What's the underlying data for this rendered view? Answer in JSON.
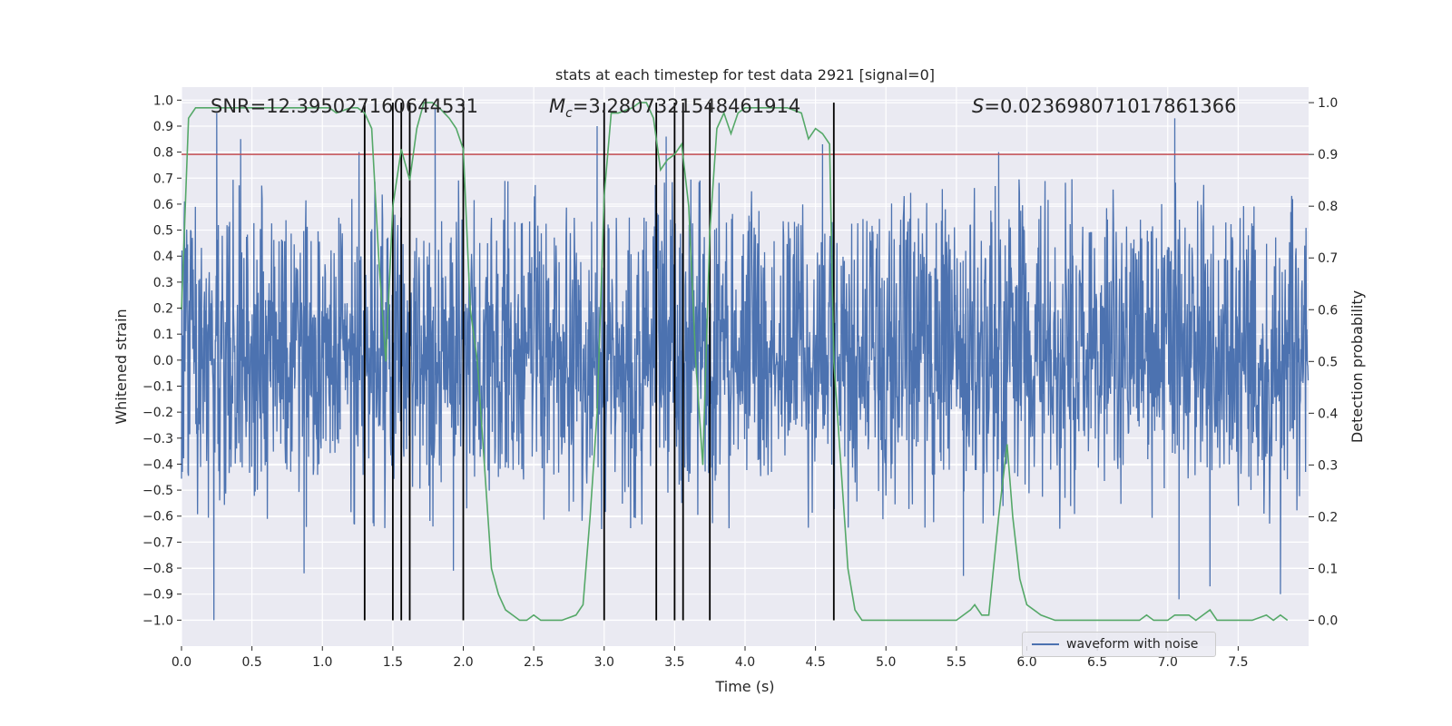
{
  "chart_data": {
    "type": "line",
    "title": "stats at each timestep for test data 2921 [signal=0]",
    "xlabel": "Time (s)",
    "ylabel_left": "Whitened strain",
    "ylabel_right": "Detection probability",
    "xlim": [
      0.0,
      8.0
    ],
    "ylim_left": [
      -1.1,
      1.05
    ],
    "ylim_right": [
      -0.05,
      1.03
    ],
    "x_ticks": [
      0.0,
      0.5,
      1.0,
      1.5,
      2.0,
      2.5,
      3.0,
      3.5,
      4.0,
      4.5,
      5.0,
      5.5,
      6.0,
      6.5,
      7.0,
      7.5
    ],
    "x_tick_labels": [
      "0.0",
      "0.5",
      "1.0",
      "1.5",
      "2.0",
      "2.5",
      "3.0",
      "3.5",
      "4.0",
      "4.5",
      "5.0",
      "5.5",
      "6.0",
      "6.5",
      "7.0",
      "7.5"
    ],
    "y_left_ticks": [
      1.0,
      0.9,
      0.8,
      0.7,
      0.6,
      0.5,
      0.4,
      0.3,
      0.2,
      0.1,
      0.0,
      -0.1,
      -0.2,
      -0.3,
      -0.4,
      -0.5,
      -0.6,
      -0.7,
      -0.8,
      -0.9,
      -1.0
    ],
    "y_left_tick_labels": [
      "1.0",
      "0.9",
      "0.8",
      "0.7",
      "0.6",
      "0.5",
      "0.4",
      "0.3",
      "0.2",
      "0.1",
      "0.0",
      "−0.1",
      "−0.2",
      "−0.3",
      "−0.4",
      "−0.5",
      "−0.6",
      "−0.7",
      "−0.8",
      "−0.9",
      "−1.0"
    ],
    "y_right_ticks": [
      1.0,
      0.9,
      0.8,
      0.7,
      0.6,
      0.5,
      0.4,
      0.3,
      0.2,
      0.1,
      0.0
    ],
    "y_right_tick_labels": [
      "1.0",
      "0.9",
      "0.8",
      "0.7",
      "0.6",
      "0.5",
      "0.4",
      "0.3",
      "0.2",
      "0.1",
      "0.0"
    ],
    "annotations": {
      "snr": "SNR=12.395027160644531",
      "mc_symbol": "M",
      "mc_sub": "c",
      "mc_value": "=3.2807321548461914",
      "s_symbol": "S",
      "s_value": "=0.023698071017861366"
    },
    "threshold": {
      "value": 0.9,
      "axis": "right",
      "color": "#c44e52"
    },
    "vertical_markers_x": [
      1.3,
      1.5,
      1.56,
      1.62,
      2.0,
      3.0,
      3.37,
      3.5,
      3.56,
      3.75,
      4.63
    ],
    "waveform": {
      "name": "waveform with noise",
      "color": "#4c72b0",
      "duration_s": 8.0,
      "typical_envelope": [
        -0.45,
        0.55
      ],
      "extreme_points": [
        {
          "t": 0.23,
          "v": -1.0
        },
        {
          "t": 0.25,
          "v": 0.95
        },
        {
          "t": 0.42,
          "v": 0.85
        },
        {
          "t": 0.87,
          "v": -0.82
        },
        {
          "t": 1.26,
          "v": 0.8
        },
        {
          "t": 1.8,
          "v": 0.97
        },
        {
          "t": 1.93,
          "v": -0.81
        },
        {
          "t": 2.95,
          "v": 0.9
        },
        {
          "t": 3.44,
          "v": 0.86
        },
        {
          "t": 3.5,
          "v": -0.82
        },
        {
          "t": 4.55,
          "v": 0.83
        },
        {
          "t": 5.55,
          "v": -0.83
        },
        {
          "t": 5.8,
          "v": 0.8
        },
        {
          "t": 7.05,
          "v": 0.93
        },
        {
          "t": 7.08,
          "v": -0.92
        },
        {
          "t": 7.3,
          "v": -0.87
        },
        {
          "t": 7.8,
          "v": -0.9
        }
      ]
    },
    "detection_probability": {
      "color": "#55a868",
      "x": [
        0.0,
        0.05,
        0.1,
        0.3,
        0.5,
        0.7,
        0.9,
        1.0,
        1.05,
        1.1,
        1.2,
        1.25,
        1.3,
        1.35,
        1.4,
        1.45,
        1.5,
        1.56,
        1.62,
        1.67,
        1.72,
        1.78,
        1.83,
        1.9,
        1.95,
        2.0,
        2.05,
        2.1,
        2.15,
        2.2,
        2.25,
        2.3,
        2.35,
        2.4,
        2.45,
        2.5,
        2.55,
        2.6,
        2.7,
        2.8,
        2.85,
        2.9,
        2.95,
        3.0,
        3.05,
        3.1,
        3.2,
        3.25,
        3.3,
        3.35,
        3.4,
        3.45,
        3.5,
        3.55,
        3.6,
        3.65,
        3.7,
        3.75,
        3.8,
        3.85,
        3.9,
        3.95,
        4.0,
        4.1,
        4.2,
        4.3,
        4.4,
        4.45,
        4.5,
        4.55,
        4.6,
        4.63,
        4.68,
        4.73,
        4.78,
        4.83,
        4.88,
        4.95,
        5.05,
        5.2,
        5.4,
        5.5,
        5.55,
        5.6,
        5.63,
        5.68,
        5.73,
        5.8,
        5.86,
        5.9,
        5.95,
        6.0,
        6.1,
        6.2,
        6.4,
        6.6,
        6.75,
        6.8,
        6.85,
        6.9,
        7.0,
        7.05,
        7.15,
        7.2,
        7.25,
        7.3,
        7.35,
        7.45,
        7.6,
        7.7,
        7.75,
        7.8,
        7.85
      ],
      "y": [
        0.6,
        0.97,
        0.99,
        0.99,
        0.99,
        0.99,
        0.99,
        0.99,
        0.99,
        0.98,
        0.99,
        0.99,
        0.98,
        0.95,
        0.7,
        0.5,
        0.8,
        0.91,
        0.85,
        0.95,
        1.0,
        1.0,
        0.99,
        0.97,
        0.95,
        0.91,
        0.6,
        0.5,
        0.3,
        0.1,
        0.05,
        0.02,
        0.01,
        0.0,
        0.0,
        0.01,
        0.0,
        0.0,
        0.0,
        0.01,
        0.03,
        0.2,
        0.4,
        0.82,
        0.98,
        0.98,
        0.99,
        1.0,
        1.0,
        0.97,
        0.87,
        0.89,
        0.9,
        0.92,
        0.8,
        0.5,
        0.3,
        0.75,
        0.95,
        0.98,
        0.94,
        0.98,
        0.99,
        0.99,
        0.99,
        0.99,
        0.98,
        0.93,
        0.95,
        0.94,
        0.92,
        0.5,
        0.3,
        0.1,
        0.02,
        0.0,
        0.0,
        0.0,
        0.0,
        0.0,
        0.0,
        0.0,
        0.01,
        0.02,
        0.03,
        0.01,
        0.01,
        0.2,
        0.34,
        0.2,
        0.08,
        0.03,
        0.01,
        0.0,
        0.0,
        0.0,
        0.0,
        0.0,
        0.01,
        0.0,
        0.0,
        0.01,
        0.01,
        0.0,
        0.01,
        0.02,
        0.0,
        0.0,
        0.0,
        0.01,
        0.0,
        0.01,
        0.0
      ]
    },
    "legend": {
      "position": "lower-right",
      "entries": [
        "waveform with noise"
      ]
    }
  }
}
